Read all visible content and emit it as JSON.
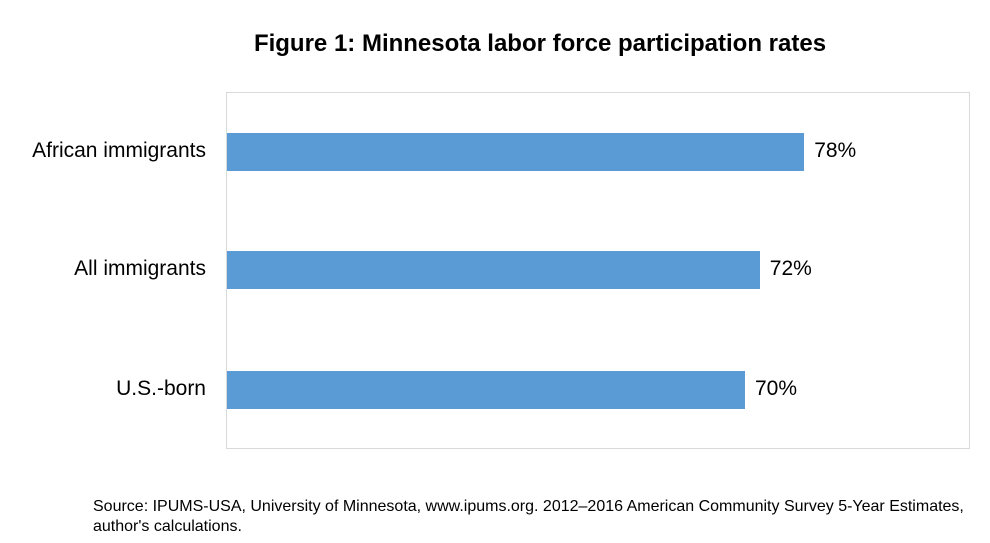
{
  "chart_data": {
    "type": "bar",
    "orientation": "horizontal",
    "title": "Figure 1: Minnesota labor force participation rates",
    "categories": [
      "African immigrants",
      "All immigrants",
      "U.S.-born"
    ],
    "values": [
      78,
      72,
      70
    ],
    "value_labels": [
      "78%",
      "72%",
      "70%"
    ],
    "xlim": [
      0,
      100
    ],
    "bar_color": "#5b9bd5",
    "grid": false,
    "legend": "none"
  },
  "source": "Source: IPUMS-USA, University of Minnesota, www.ipums.org. 2012–2016 American Community Survey 5-Year Estimates, author's calculations."
}
